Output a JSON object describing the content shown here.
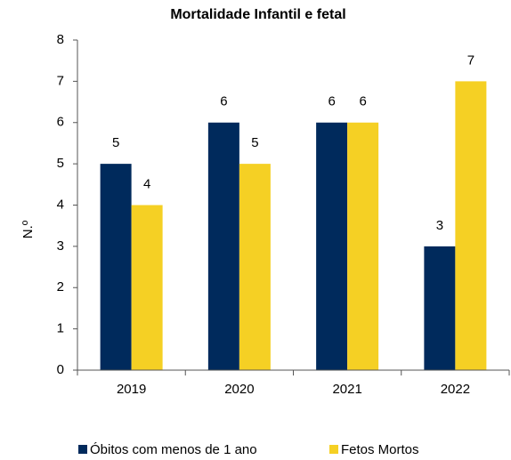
{
  "chart_data": {
    "type": "bar",
    "title": "Mortalidade Infantil e fetal",
    "y_label": "N.º",
    "categories": [
      "2019",
      "2020",
      "2021",
      "2022"
    ],
    "series": [
      {
        "name": "Óbitos com menos de 1 ano",
        "color": "#002a5c",
        "values": [
          5,
          6,
          6,
          3
        ]
      },
      {
        "name": "Fetos Mortos",
        "color": "#f5d024",
        "values": [
          4,
          5,
          6,
          7
        ]
      }
    ],
    "ylim": [
      0,
      8
    ],
    "yticks": [
      0,
      1,
      2,
      3,
      4,
      5,
      6,
      7,
      8
    ],
    "grid": false,
    "legend": "bottom"
  }
}
